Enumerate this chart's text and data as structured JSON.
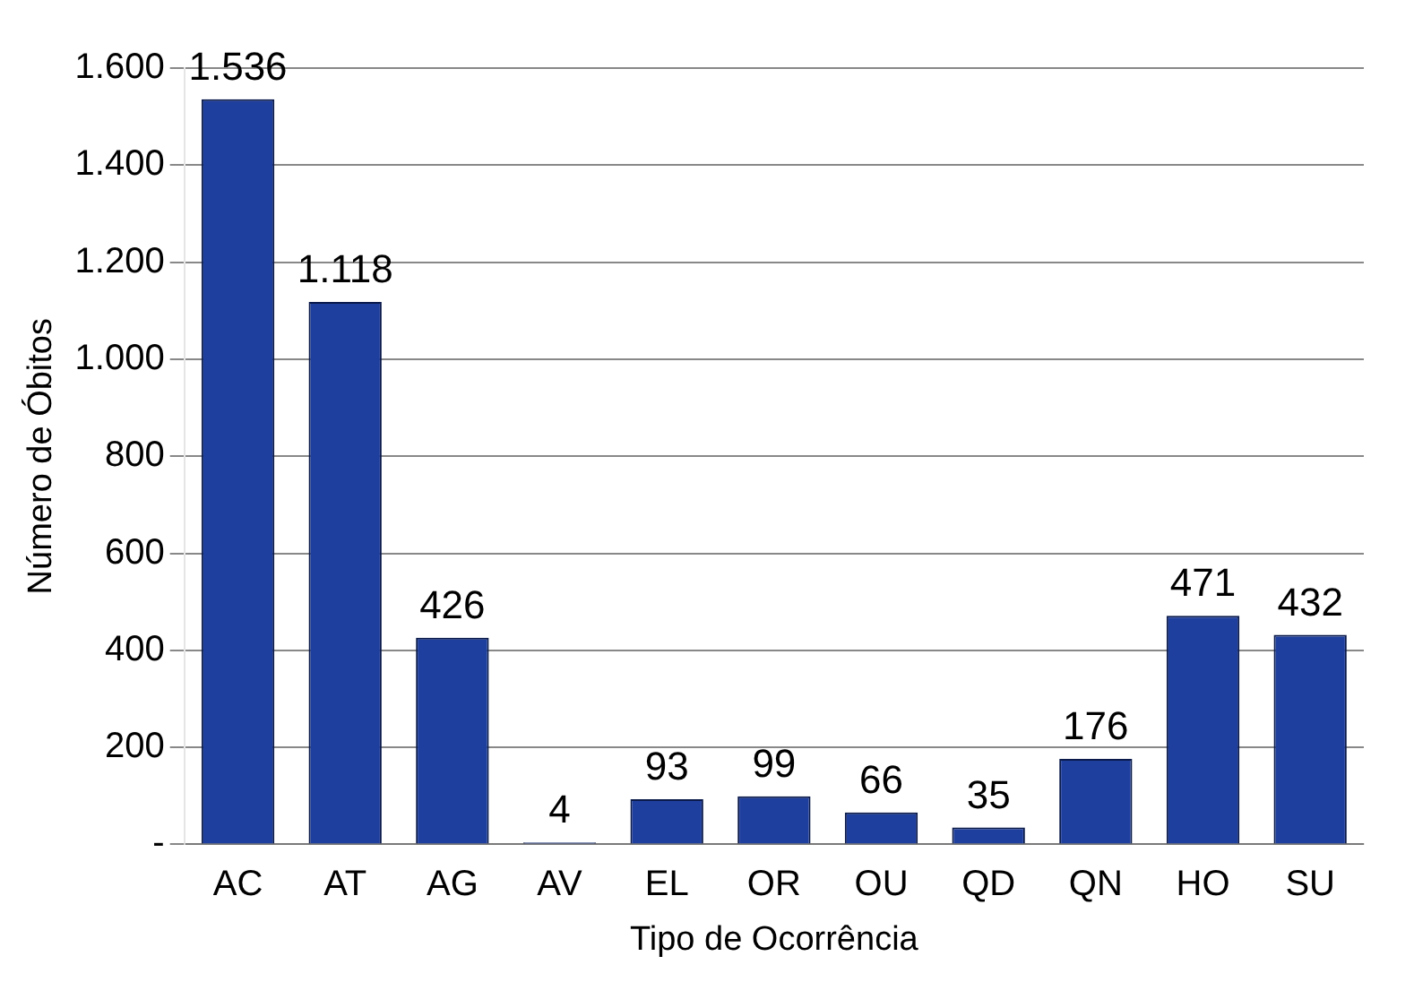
{
  "chart_data": {
    "type": "bar",
    "xlabel": "Tipo de Ocorrência",
    "ylabel": "Número de Óbitos",
    "categories": [
      "AC",
      "AT",
      "AG",
      "AV",
      "EL",
      "OR",
      "OU",
      "QD",
      "QN",
      "HO",
      "SU"
    ],
    "values": [
      1536,
      1118,
      426,
      4,
      93,
      99,
      66,
      35,
      176,
      471,
      432
    ],
    "value_labels": [
      "1.536",
      "1.118",
      "426",
      "4",
      "93",
      "99",
      "66",
      "35",
      "176",
      "471",
      "432"
    ],
    "color": "#1f3f9f",
    "ylim": [
      0,
      1600
    ],
    "yticks": [
      {
        "value": 0,
        "label": "-"
      },
      200,
      400,
      600,
      800,
      {
        "value": 1000,
        "label": "1.000"
      },
      {
        "value": 1200,
        "label": "1.200"
      },
      {
        "value": 1400,
        "label": "1.400"
      },
      {
        "value": 1600,
        "label": "1.600"
      }
    ],
    "grid": "y"
  }
}
